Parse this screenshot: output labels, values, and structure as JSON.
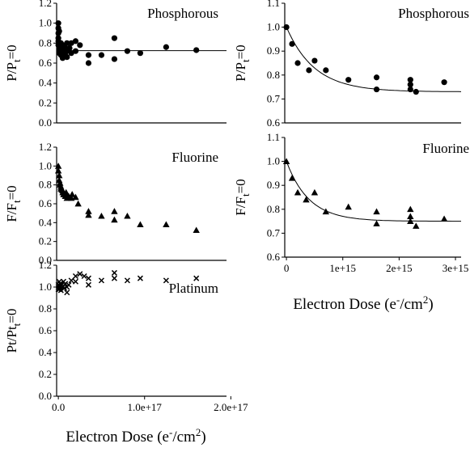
{
  "chart_data": [
    {
      "id": "left-phosphorous",
      "type": "scatter",
      "title": "Phosphorous",
      "ylabel": {
        "main": "P/P",
        "sub": "t",
        "tail": "=0"
      },
      "ylim": [
        0,
        1.2
      ],
      "yticks": [
        "0.0",
        "0.2",
        "0.4",
        "0.6",
        "0.8",
        "1.0",
        "1.2"
      ],
      "xlim": [
        -2000000000000000.0,
        1.95e+17
      ],
      "xticks": [],
      "marker": "circle",
      "fit": {
        "kind": "flat",
        "value": 0.725
      },
      "points": [
        [
          0,
          1.0
        ],
        [
          0,
          0.95
        ],
        [
          0,
          0.9
        ],
        [
          0,
          0.85
        ],
        [
          0,
          0.82
        ],
        [
          0,
          0.78
        ],
        [
          1000000000000000.0,
          0.92
        ],
        [
          1000000000000000.0,
          0.8
        ],
        [
          1000000000000000.0,
          0.75
        ],
        [
          1000000000000000.0,
          0.72
        ],
        [
          1000000000000000.0,
          0.7
        ],
        [
          3000000000000000.0,
          0.8
        ],
        [
          3000000000000000.0,
          0.75
        ],
        [
          3000000000000000.0,
          0.72
        ],
        [
          3000000000000000.0,
          0.68
        ],
        [
          5000000000000000.0,
          0.78
        ],
        [
          5000000000000000.0,
          0.74
        ],
        [
          5000000000000000.0,
          0.65
        ],
        [
          6000000000000000.0,
          0.7
        ],
        [
          8000000000000000.0,
          0.75
        ],
        [
          8000000000000000.0,
          0.68
        ],
        [
          1e+16,
          0.8
        ],
        [
          1e+16,
          0.72
        ],
        [
          1e+16,
          0.66
        ],
        [
          1.3e+16,
          0.75
        ],
        [
          1.5e+16,
          0.8
        ],
        [
          1.5e+16,
          0.7
        ],
        [
          2e+16,
          0.82
        ],
        [
          2e+16,
          0.72
        ],
        [
          2.5e+16,
          0.78
        ],
        [
          3.5e+16,
          0.68
        ],
        [
          3.5e+16,
          0.6
        ],
        [
          5e+16,
          0.68
        ],
        [
          6.5e+16,
          0.85
        ],
        [
          6.5e+16,
          0.64
        ],
        [
          8e+16,
          0.72
        ],
        [
          9.5e+16,
          0.7
        ],
        [
          1.25e+17,
          0.76
        ],
        [
          1.6e+17,
          0.73
        ]
      ]
    },
    {
      "id": "left-fluorine",
      "type": "scatter",
      "title": "Fluorine",
      "ylabel": {
        "main": "F/F",
        "sub": "t",
        "tail": "=0"
      },
      "ylim": [
        0,
        1.2
      ],
      "yticks": [
        "0.0",
        "0.2",
        "0.4",
        "0.6",
        "0.8",
        "1.0",
        "1.2"
      ],
      "xlim": [
        -2000000000000000.0,
        1.95e+17
      ],
      "xticks": [],
      "marker": "triangle",
      "fit": null,
      "points": [
        [
          0,
          1.0
        ],
        [
          0,
          0.95
        ],
        [
          1000000000000000.0,
          0.9
        ],
        [
          1000000000000000.0,
          0.85
        ],
        [
          2000000000000000.0,
          0.82
        ],
        [
          2000000000000000.0,
          0.8
        ],
        [
          3000000000000000.0,
          0.78
        ],
        [
          3000000000000000.0,
          0.76
        ],
        [
          4000000000000000.0,
          0.75
        ],
        [
          5000000000000000.0,
          0.74
        ],
        [
          5000000000000000.0,
          0.72
        ],
        [
          6000000000000000.0,
          0.7
        ],
        [
          7000000000000000.0,
          0.7
        ],
        [
          8000000000000000.0,
          0.68
        ],
        [
          9000000000000000.0,
          0.72
        ],
        [
          1e+16,
          0.7
        ],
        [
          1e+16,
          0.66
        ],
        [
          1.2e+16,
          0.68
        ],
        [
          1.5e+16,
          0.66
        ],
        [
          1.6e+16,
          0.7
        ],
        [
          2e+16,
          0.67
        ],
        [
          2.3e+16,
          0.6
        ],
        [
          3.5e+16,
          0.52
        ],
        [
          3.5e+16,
          0.48
        ],
        [
          5e+16,
          0.47
        ],
        [
          6.5e+16,
          0.52
        ],
        [
          6.5e+16,
          0.43
        ],
        [
          8e+16,
          0.47
        ],
        [
          9.5e+16,
          0.38
        ],
        [
          1.25e+17,
          0.38
        ],
        [
          1.6e+17,
          0.32
        ]
      ]
    },
    {
      "id": "left-platinum",
      "type": "scatter",
      "title": "Platinum",
      "ylabel": {
        "main": "Pt/Pt",
        "sub": "t",
        "tail": "=0"
      },
      "ylim": [
        0,
        1.2
      ],
      "yticks": [
        "0.0",
        "0.2",
        "0.4",
        "0.6",
        "0.8",
        "1.0",
        "1.2"
      ],
      "xlim": [
        -2000000000000000.0,
        1.95e+17
      ],
      "xticks": [
        {
          "value": 0,
          "label": "0.0"
        },
        {
          "value": 1e+17,
          "label": "1.0e+17"
        },
        {
          "value": 2e+17,
          "label": "2.0e+17"
        }
      ],
      "marker": "x",
      "fit": null,
      "points": [
        [
          0,
          1.0
        ],
        [
          0,
          1.02
        ],
        [
          0,
          0.98
        ],
        [
          1000000000000000.0,
          1.05
        ],
        [
          1000000000000000.0,
          0.98
        ],
        [
          2000000000000000.0,
          1.0
        ],
        [
          2000000000000000.0,
          1.03
        ],
        [
          3000000000000000.0,
          0.97
        ],
        [
          4000000000000000.0,
          1.02
        ],
        [
          5000000000000000.0,
          1.0
        ],
        [
          6000000000000000.0,
          1.05
        ],
        [
          7000000000000000.0,
          0.99
        ],
        [
          8000000000000000.0,
          1.03
        ],
        [
          1e+16,
          1.0
        ],
        [
          1e+16,
          0.95
        ],
        [
          1.2e+16,
          1.02
        ],
        [
          1.5e+16,
          1.06
        ],
        [
          2e+16,
          1.1
        ],
        [
          2e+16,
          1.05
        ],
        [
          2.5e+16,
          1.12
        ],
        [
          3e+16,
          1.1
        ],
        [
          3.5e+16,
          1.08
        ],
        [
          3.5e+16,
          1.02
        ],
        [
          5e+16,
          1.06
        ],
        [
          6.5e+16,
          1.13
        ],
        [
          6.5e+16,
          1.08
        ],
        [
          8e+16,
          1.06
        ],
        [
          9.5e+16,
          1.08
        ],
        [
          1.25e+17,
          1.06
        ],
        [
          1.6e+17,
          1.08
        ]
      ]
    },
    {
      "id": "right-phosphorous",
      "type": "scatter",
      "title": "Phosphorous",
      "ylabel": {
        "main": "P/P",
        "sub": "t",
        "tail": "=0"
      },
      "ylim": [
        0.6,
        1.1
      ],
      "yticks": [
        "0.6",
        "0.7",
        "0.8",
        "0.9",
        "1.0",
        "1.1"
      ],
      "xlim": [
        -30000000000000.0,
        3100000000000000.0
      ],
      "xticks": [],
      "marker": "circle",
      "fit": {
        "kind": "exp",
        "a": 0.73,
        "b": 0.27,
        "tau": 500000000000000.0
      },
      "points": [
        [
          0,
          1.0
        ],
        [
          100000000000000.0,
          0.93
        ],
        [
          200000000000000.0,
          0.85
        ],
        [
          400000000000000.0,
          0.82
        ],
        [
          500000000000000.0,
          0.86
        ],
        [
          700000000000000.0,
          0.82
        ],
        [
          1100000000000000.0,
          0.78
        ],
        [
          1600000000000000.0,
          0.79
        ],
        [
          1600000000000000.0,
          0.74
        ],
        [
          2200000000000000.0,
          0.78
        ],
        [
          2200000000000000.0,
          0.76
        ],
        [
          2200000000000000.0,
          0.74
        ],
        [
          2300000000000000.0,
          0.73
        ],
        [
          2800000000000000.0,
          0.77
        ]
      ]
    },
    {
      "id": "right-fluorine",
      "type": "scatter",
      "title": "Fluorine",
      "ylabel": {
        "main": "F/F",
        "sub": "t",
        "tail": "=0"
      },
      "ylim": [
        0.6,
        1.1
      ],
      "yticks": [
        "0.6",
        "0.7",
        "0.8",
        "0.9",
        "1.0",
        "1.1"
      ],
      "xlim": [
        -30000000000000.0,
        3100000000000000.0
      ],
      "xticks": [
        {
          "value": 0,
          "label": "0"
        },
        {
          "value": 1000000000000000.0,
          "label": "1e+15"
        },
        {
          "value": 2000000000000000.0,
          "label": "2e+15"
        },
        {
          "value": 3000000000000000.0,
          "label": "3e+15"
        }
      ],
      "marker": "triangle",
      "fit": {
        "kind": "exp",
        "a": 0.75,
        "b": 0.25,
        "tau": 400000000000000.0
      },
      "points": [
        [
          0,
          1.0
        ],
        [
          100000000000000.0,
          0.93
        ],
        [
          200000000000000.0,
          0.87
        ],
        [
          350000000000000.0,
          0.84
        ],
        [
          500000000000000.0,
          0.87
        ],
        [
          700000000000000.0,
          0.79
        ],
        [
          1100000000000000.0,
          0.81
        ],
        [
          1600000000000000.0,
          0.79
        ],
        [
          1600000000000000.0,
          0.74
        ],
        [
          2200000000000000.0,
          0.8
        ],
        [
          2200000000000000.0,
          0.77
        ],
        [
          2200000000000000.0,
          0.75
        ],
        [
          2300000000000000.0,
          0.73
        ],
        [
          2800000000000000.0,
          0.76
        ]
      ]
    }
  ],
  "axes_labels": {
    "left_x": {
      "main": "Electron Dose (e",
      "sup1": "-",
      "tail": "/cm",
      "sup2": "2",
      "close": ")"
    },
    "right_x": {
      "main": "Electron Dose (e",
      "sup1": "-",
      "tail": "/cm",
      "sup2": "2",
      "close": ")"
    }
  }
}
